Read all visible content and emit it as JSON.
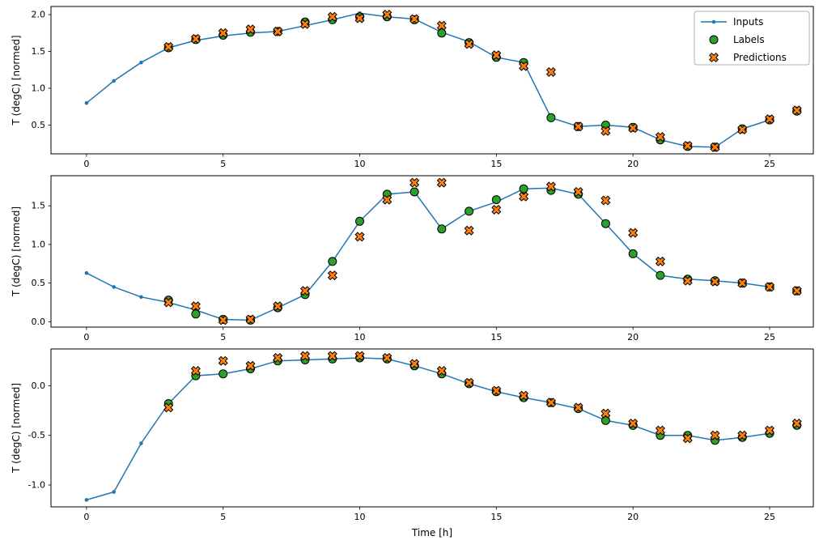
{
  "figure": {
    "background": "#ffffff",
    "accent_colors": {
      "inputs": "#1f77b4",
      "labels": "#2ca02c",
      "predictions": "#ff7f0e",
      "marker_edge": "#000000"
    }
  },
  "legend": {
    "position": "upper right",
    "entries": [
      "Inputs",
      "Labels",
      "Predictions"
    ]
  },
  "chart_data": [
    {
      "type": "line",
      "title": "",
      "xlabel": "",
      "ylabel": "T (degC) [normed]",
      "xlim": [
        -1.3,
        26.6
      ],
      "ylim": [
        0.11,
        2.11
      ],
      "grid": false,
      "legend": true,
      "xticks": {
        "values": [
          0,
          5,
          10,
          15,
          20,
          25
        ],
        "labels": [
          "0",
          "5",
          "10",
          "15",
          "20",
          "25"
        ]
      },
      "yticks": {
        "values": [
          0.5,
          1.0,
          1.5,
          2.0
        ],
        "labels": [
          "0.5",
          "1.0",
          "1.5",
          "2.0"
        ]
      },
      "series": [
        {
          "name": "Inputs",
          "type": "line+marker",
          "marker": "dot",
          "color": "#1f77b4",
          "x": [
            0,
            1,
            2,
            3,
            4,
            5,
            6,
            7,
            8,
            9,
            10,
            11,
            12,
            13,
            14,
            15,
            16,
            17,
            18,
            19,
            20,
            21,
            22,
            23,
            24,
            25
          ],
          "y": [
            0.8,
            1.1,
            1.35,
            1.55,
            1.65,
            1.71,
            1.75,
            1.77,
            1.85,
            1.93,
            2.02,
            1.97,
            1.94,
            1.76,
            1.63,
            1.42,
            1.35,
            0.6,
            0.48,
            0.5,
            0.47,
            0.3,
            0.21,
            0.2,
            0.45,
            0.57
          ]
        },
        {
          "name": "Labels",
          "type": "scatter",
          "marker": "circle",
          "color": "#2ca02c",
          "edgecolor": "#000000",
          "x": [
            3,
            4,
            5,
            6,
            7,
            8,
            9,
            10,
            11,
            12,
            13,
            14,
            15,
            16,
            17,
            18,
            19,
            20,
            21,
            22,
            23,
            24,
            25,
            26
          ],
          "y": [
            1.55,
            1.66,
            1.72,
            1.76,
            1.77,
            1.9,
            1.93,
            1.97,
            1.97,
            1.93,
            1.75,
            1.62,
            1.42,
            1.35,
            0.6,
            0.48,
            0.5,
            0.47,
            0.3,
            0.21,
            0.2,
            0.45,
            0.57,
            0.69
          ]
        },
        {
          "name": "Predictions",
          "type": "scatter",
          "marker": "X",
          "color": "#ff7f0e",
          "edgecolor": "#000000",
          "x": [
            3,
            4,
            5,
            6,
            7,
            8,
            9,
            10,
            11,
            12,
            13,
            14,
            15,
            16,
            17,
            18,
            19,
            20,
            21,
            22,
            23,
            24,
            25,
            26
          ],
          "y": [
            1.56,
            1.67,
            1.75,
            1.8,
            1.77,
            1.87,
            1.97,
            1.95,
            2.0,
            1.94,
            1.85,
            1.6,
            1.45,
            1.3,
            1.22,
            0.48,
            0.42,
            0.46,
            0.34,
            0.22,
            0.2,
            0.44,
            0.58,
            0.7
          ]
        }
      ]
    },
    {
      "type": "line",
      "title": "",
      "xlabel": "",
      "ylabel": "T (degC) [normed]",
      "xlim": [
        -1.3,
        26.6
      ],
      "ylim": [
        -0.07,
        1.89
      ],
      "grid": false,
      "legend": false,
      "xticks": {
        "values": [
          0,
          5,
          10,
          15,
          20,
          25
        ],
        "labels": [
          "0",
          "5",
          "10",
          "15",
          "20",
          "25"
        ]
      },
      "yticks": {
        "values": [
          0.0,
          0.5,
          1.0,
          1.5
        ],
        "labels": [
          "0.0",
          "0.5",
          "1.0",
          "1.5"
        ]
      },
      "series": [
        {
          "name": "Inputs",
          "type": "line+marker",
          "marker": "dot",
          "color": "#1f77b4",
          "x": [
            0,
            1,
            2,
            3,
            4,
            5,
            6,
            7,
            8,
            9,
            10,
            11,
            12,
            13,
            14,
            15,
            16,
            17,
            18,
            19,
            20,
            21,
            22,
            23,
            24,
            25
          ],
          "y": [
            0.63,
            0.45,
            0.32,
            0.25,
            0.15,
            0.03,
            0.02,
            0.18,
            0.35,
            0.78,
            1.3,
            1.65,
            1.68,
            1.2,
            1.43,
            1.55,
            1.72,
            1.73,
            1.65,
            1.27,
            0.88,
            0.6,
            0.55,
            0.53,
            0.5,
            0.45
          ]
        },
        {
          "name": "Labels",
          "type": "scatter",
          "marker": "circle",
          "color": "#2ca02c",
          "edgecolor": "#000000",
          "x": [
            3,
            4,
            5,
            6,
            7,
            8,
            9,
            10,
            11,
            12,
            13,
            14,
            15,
            16,
            17,
            18,
            19,
            20,
            21,
            22,
            23,
            24,
            25,
            26
          ],
          "y": [
            0.28,
            0.1,
            0.03,
            0.02,
            0.18,
            0.35,
            0.78,
            1.3,
            1.65,
            1.68,
            1.2,
            1.43,
            1.58,
            1.72,
            1.7,
            1.65,
            1.27,
            0.88,
            0.6,
            0.55,
            0.53,
            0.5,
            0.45,
            0.4
          ]
        },
        {
          "name": "Predictions",
          "type": "scatter",
          "marker": "X",
          "color": "#ff7f0e",
          "edgecolor": "#000000",
          "x": [
            3,
            4,
            5,
            6,
            7,
            8,
            9,
            10,
            11,
            12,
            13,
            14,
            15,
            16,
            17,
            18,
            19,
            20,
            21,
            22,
            23,
            24,
            25,
            26
          ],
          "y": [
            0.25,
            0.2,
            0.02,
            0.03,
            0.2,
            0.4,
            0.6,
            1.1,
            1.58,
            1.8,
            1.8,
            1.18,
            1.45,
            1.62,
            1.75,
            1.68,
            1.57,
            1.15,
            0.78,
            0.53,
            0.52,
            0.5,
            0.45,
            0.4
          ]
        }
      ]
    },
    {
      "type": "line",
      "title": "",
      "xlabel": "Time [h]",
      "ylabel": "T (degC) [normed]",
      "xlim": [
        -1.3,
        26.6
      ],
      "ylim": [
        -1.22,
        0.37
      ],
      "grid": false,
      "legend": false,
      "xticks": {
        "values": [
          0,
          5,
          10,
          15,
          20,
          25
        ],
        "labels": [
          "0",
          "5",
          "10",
          "15",
          "20",
          "25"
        ]
      },
      "yticks": {
        "values": [
          -1.0,
          -0.5,
          0.0
        ],
        "labels": [
          "-1.0",
          "-0.5",
          "0.0"
        ]
      },
      "series": [
        {
          "name": "Inputs",
          "type": "line+marker",
          "marker": "dot",
          "color": "#1f77b4",
          "x": [
            0,
            1,
            2,
            3,
            4,
            5,
            6,
            7,
            8,
            9,
            10,
            11,
            12,
            13,
            14,
            15,
            16,
            17,
            18,
            19,
            20,
            21,
            22,
            23,
            24,
            25
          ],
          "y": [
            -1.15,
            -1.07,
            -0.58,
            -0.18,
            0.1,
            0.12,
            0.17,
            0.25,
            0.26,
            0.27,
            0.28,
            0.27,
            0.2,
            0.12,
            0.02,
            -0.06,
            -0.12,
            -0.17,
            -0.23,
            -0.35,
            -0.4,
            -0.5,
            -0.5,
            -0.55,
            -0.52,
            -0.48
          ]
        },
        {
          "name": "Labels",
          "type": "scatter",
          "marker": "circle",
          "color": "#2ca02c",
          "edgecolor": "#000000",
          "x": [
            3,
            4,
            5,
            6,
            7,
            8,
            9,
            10,
            11,
            12,
            13,
            14,
            15,
            16,
            17,
            18,
            19,
            20,
            21,
            22,
            23,
            24,
            25,
            26
          ],
          "y": [
            -0.18,
            0.1,
            0.12,
            0.17,
            0.25,
            0.26,
            0.27,
            0.28,
            0.27,
            0.2,
            0.12,
            0.02,
            -0.06,
            -0.12,
            -0.17,
            -0.23,
            -0.35,
            -0.4,
            -0.5,
            -0.5,
            -0.55,
            -0.52,
            -0.48,
            -0.4
          ]
        },
        {
          "name": "Predictions",
          "type": "scatter",
          "marker": "X",
          "color": "#ff7f0e",
          "edgecolor": "#000000",
          "x": [
            3,
            4,
            5,
            6,
            7,
            8,
            9,
            10,
            11,
            12,
            13,
            14,
            15,
            16,
            17,
            18,
            19,
            20,
            21,
            22,
            23,
            24,
            25,
            26
          ],
          "y": [
            -0.22,
            0.15,
            0.25,
            0.2,
            0.28,
            0.3,
            0.3,
            0.3,
            0.28,
            0.22,
            0.15,
            0.03,
            -0.05,
            -0.1,
            -0.17,
            -0.22,
            -0.28,
            -0.38,
            -0.45,
            -0.53,
            -0.5,
            -0.5,
            -0.45,
            -0.38
          ]
        }
      ]
    }
  ]
}
